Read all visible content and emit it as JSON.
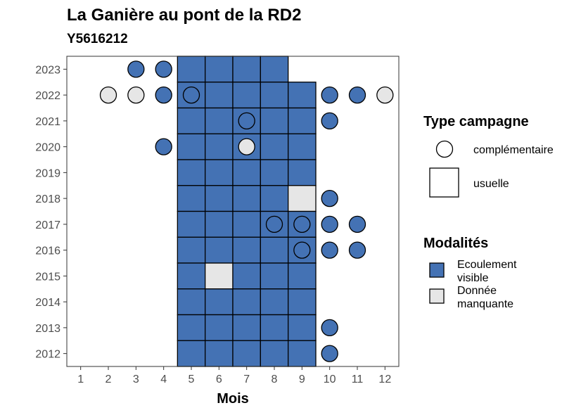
{
  "title": "La Ganière au pont de la RD2",
  "subtitle": "Y5616212",
  "colors": {
    "ecoulement_visible": "#4472b4",
    "donnee_manquante": "#e6e6e6",
    "empty": "#ffffff",
    "stroke": "#000000",
    "panel_border": "#333333"
  },
  "chart_data": {
    "type": "heatmap",
    "xlabel": "Mois",
    "ylabel": "",
    "x_ticks": [
      "1",
      "2",
      "3",
      "4",
      "5",
      "6",
      "7",
      "8",
      "9",
      "10",
      "11",
      "12"
    ],
    "y_ticks": [
      "2012",
      "2013",
      "2014",
      "2015",
      "2016",
      "2017",
      "2018",
      "2019",
      "2020",
      "2021",
      "2022",
      "2023"
    ],
    "xlim": [
      0.5,
      12.5
    ],
    "ylim": [
      2011.5,
      2023.5
    ],
    "grid": false,
    "legend_placement": "right",
    "legends": [
      {
        "title": "Type campagne",
        "entries": [
          {
            "label": "complémentaire",
            "shape": "circle"
          },
          {
            "label": "usuelle",
            "shape": "square"
          }
        ]
      },
      {
        "title": "Modalités",
        "entries": [
          {
            "label_lines": [
              "Ecoulement",
              "visible"
            ],
            "color_key": "ecoulement_visible"
          },
          {
            "label_lines": [
              "Donnée",
              "manquante"
            ],
            "color_key": "donnee_manquante"
          }
        ]
      }
    ],
    "points": [
      {
        "year": 2023,
        "month": 3,
        "campagne": "complémentaire",
        "modalite": "Ecoulement visible"
      },
      {
        "year": 2023,
        "month": 4,
        "campagne": "complémentaire",
        "modalite": "Ecoulement visible"
      },
      {
        "year": 2023,
        "month": 5,
        "campagne": "usuelle",
        "modalite": "Ecoulement visible"
      },
      {
        "year": 2023,
        "month": 6,
        "campagne": "usuelle",
        "modalite": "Ecoulement visible"
      },
      {
        "year": 2023,
        "month": 7,
        "campagne": "usuelle",
        "modalite": "Ecoulement visible"
      },
      {
        "year": 2023,
        "month": 8,
        "campagne": "usuelle",
        "modalite": "Ecoulement visible"
      },
      {
        "year": 2022,
        "month": 2,
        "campagne": "complémentaire",
        "modalite": "Donnée manquante"
      },
      {
        "year": 2022,
        "month": 3,
        "campagne": "complémentaire",
        "modalite": "Donnée manquante"
      },
      {
        "year": 2022,
        "month": 4,
        "campagne": "complémentaire",
        "modalite": "Ecoulement visible"
      },
      {
        "year": 2022,
        "month": 5,
        "campagne": "usuelle",
        "modalite": "Ecoulement visible"
      },
      {
        "year": 2022,
        "month": 5,
        "campagne": "complémentaire",
        "modalite": "Ecoulement visible"
      },
      {
        "year": 2022,
        "month": 6,
        "campagne": "usuelle",
        "modalite": "Ecoulement visible"
      },
      {
        "year": 2022,
        "month": 7,
        "campagne": "usuelle",
        "modalite": "Ecoulement visible"
      },
      {
        "year": 2022,
        "month": 8,
        "campagne": "usuelle",
        "modalite": "Ecoulement visible"
      },
      {
        "year": 2022,
        "month": 9,
        "campagne": "usuelle",
        "modalite": "Ecoulement visible"
      },
      {
        "year": 2022,
        "month": 10,
        "campagne": "complémentaire",
        "modalite": "Ecoulement visible"
      },
      {
        "year": 2022,
        "month": 11,
        "campagne": "complémentaire",
        "modalite": "Ecoulement visible"
      },
      {
        "year": 2022,
        "month": 12,
        "campagne": "complémentaire",
        "modalite": "Donnée manquante"
      },
      {
        "year": 2021,
        "month": 5,
        "campagne": "usuelle",
        "modalite": "Ecoulement visible"
      },
      {
        "year": 2021,
        "month": 6,
        "campagne": "usuelle",
        "modalite": "Ecoulement visible"
      },
      {
        "year": 2021,
        "month": 7,
        "campagne": "usuelle",
        "modalite": "Ecoulement visible"
      },
      {
        "year": 2021,
        "month": 7,
        "campagne": "complémentaire",
        "modalite": "Ecoulement visible"
      },
      {
        "year": 2021,
        "month": 8,
        "campagne": "usuelle",
        "modalite": "Ecoulement visible"
      },
      {
        "year": 2021,
        "month": 9,
        "campagne": "usuelle",
        "modalite": "Ecoulement visible"
      },
      {
        "year": 2021,
        "month": 10,
        "campagne": "complémentaire",
        "modalite": "Ecoulement visible"
      },
      {
        "year": 2020,
        "month": 4,
        "campagne": "complémentaire",
        "modalite": "Ecoulement visible"
      },
      {
        "year": 2020,
        "month": 5,
        "campagne": "usuelle",
        "modalite": "Ecoulement visible"
      },
      {
        "year": 2020,
        "month": 6,
        "campagne": "usuelle",
        "modalite": "Ecoulement visible"
      },
      {
        "year": 2020,
        "month": 7,
        "campagne": "usuelle",
        "modalite": "Ecoulement visible"
      },
      {
        "year": 2020,
        "month": 7,
        "campagne": "complémentaire",
        "modalite": "Donnée manquante"
      },
      {
        "year": 2020,
        "month": 8,
        "campagne": "usuelle",
        "modalite": "Ecoulement visible"
      },
      {
        "year": 2020,
        "month": 9,
        "campagne": "usuelle",
        "modalite": "Ecoulement visible"
      },
      {
        "year": 2019,
        "month": 5,
        "campagne": "usuelle",
        "modalite": "Ecoulement visible"
      },
      {
        "year": 2019,
        "month": 6,
        "campagne": "usuelle",
        "modalite": "Ecoulement visible"
      },
      {
        "year": 2019,
        "month": 7,
        "campagne": "usuelle",
        "modalite": "Ecoulement visible"
      },
      {
        "year": 2019,
        "month": 8,
        "campagne": "usuelle",
        "modalite": "Ecoulement visible"
      },
      {
        "year": 2019,
        "month": 9,
        "campagne": "usuelle",
        "modalite": "Ecoulement visible"
      },
      {
        "year": 2018,
        "month": 5,
        "campagne": "usuelle",
        "modalite": "Ecoulement visible"
      },
      {
        "year": 2018,
        "month": 6,
        "campagne": "usuelle",
        "modalite": "Ecoulement visible"
      },
      {
        "year": 2018,
        "month": 7,
        "campagne": "usuelle",
        "modalite": "Ecoulement visible"
      },
      {
        "year": 2018,
        "month": 8,
        "campagne": "usuelle",
        "modalite": "Ecoulement visible"
      },
      {
        "year": 2018,
        "month": 9,
        "campagne": "usuelle",
        "modalite": "Donnée manquante"
      },
      {
        "year": 2018,
        "month": 10,
        "campagne": "complémentaire",
        "modalite": "Ecoulement visible"
      },
      {
        "year": 2017,
        "month": 5,
        "campagne": "usuelle",
        "modalite": "Ecoulement visible"
      },
      {
        "year": 2017,
        "month": 6,
        "campagne": "usuelle",
        "modalite": "Ecoulement visible"
      },
      {
        "year": 2017,
        "month": 7,
        "campagne": "usuelle",
        "modalite": "Ecoulement visible"
      },
      {
        "year": 2017,
        "month": 8,
        "campagne": "usuelle",
        "modalite": "Ecoulement visible"
      },
      {
        "year": 2017,
        "month": 8,
        "campagne": "complémentaire",
        "modalite": "Ecoulement visible"
      },
      {
        "year": 2017,
        "month": 9,
        "campagne": "usuelle",
        "modalite": "Ecoulement visible"
      },
      {
        "year": 2017,
        "month": 9,
        "campagne": "complémentaire",
        "modalite": "Ecoulement visible"
      },
      {
        "year": 2017,
        "month": 10,
        "campagne": "complémentaire",
        "modalite": "Ecoulement visible"
      },
      {
        "year": 2017,
        "month": 11,
        "campagne": "complémentaire",
        "modalite": "Ecoulement visible"
      },
      {
        "year": 2016,
        "month": 5,
        "campagne": "usuelle",
        "modalite": "Ecoulement visible"
      },
      {
        "year": 2016,
        "month": 6,
        "campagne": "usuelle",
        "modalite": "Ecoulement visible"
      },
      {
        "year": 2016,
        "month": 7,
        "campagne": "usuelle",
        "modalite": "Ecoulement visible"
      },
      {
        "year": 2016,
        "month": 8,
        "campagne": "usuelle",
        "modalite": "Ecoulement visible"
      },
      {
        "year": 2016,
        "month": 9,
        "campagne": "usuelle",
        "modalite": "Ecoulement visible"
      },
      {
        "year": 2016,
        "month": 9,
        "campagne": "complémentaire",
        "modalite": "Ecoulement visible"
      },
      {
        "year": 2016,
        "month": 10,
        "campagne": "complémentaire",
        "modalite": "Ecoulement visible"
      },
      {
        "year": 2016,
        "month": 11,
        "campagne": "complémentaire",
        "modalite": "Ecoulement visible"
      },
      {
        "year": 2015,
        "month": 5,
        "campagne": "usuelle",
        "modalite": "Ecoulement visible"
      },
      {
        "year": 2015,
        "month": 6,
        "campagne": "usuelle",
        "modalite": "Donnée manquante"
      },
      {
        "year": 2015,
        "month": 7,
        "campagne": "usuelle",
        "modalite": "Ecoulement visible"
      },
      {
        "year": 2015,
        "month": 8,
        "campagne": "usuelle",
        "modalite": "Ecoulement visible"
      },
      {
        "year": 2015,
        "month": 9,
        "campagne": "usuelle",
        "modalite": "Ecoulement visible"
      },
      {
        "year": 2014,
        "month": 5,
        "campagne": "usuelle",
        "modalite": "Ecoulement visible"
      },
      {
        "year": 2014,
        "month": 6,
        "campagne": "usuelle",
        "modalite": "Ecoulement visible"
      },
      {
        "year": 2014,
        "month": 7,
        "campagne": "usuelle",
        "modalite": "Ecoulement visible"
      },
      {
        "year": 2014,
        "month": 8,
        "campagne": "usuelle",
        "modalite": "Ecoulement visible"
      },
      {
        "year": 2014,
        "month": 9,
        "campagne": "usuelle",
        "modalite": "Ecoulement visible"
      },
      {
        "year": 2013,
        "month": 5,
        "campagne": "usuelle",
        "modalite": "Ecoulement visible"
      },
      {
        "year": 2013,
        "month": 6,
        "campagne": "usuelle",
        "modalite": "Ecoulement visible"
      },
      {
        "year": 2013,
        "month": 7,
        "campagne": "usuelle",
        "modalite": "Ecoulement visible"
      },
      {
        "year": 2013,
        "month": 8,
        "campagne": "usuelle",
        "modalite": "Ecoulement visible"
      },
      {
        "year": 2013,
        "month": 9,
        "campagne": "usuelle",
        "modalite": "Ecoulement visible"
      },
      {
        "year": 2013,
        "month": 10,
        "campagne": "complémentaire",
        "modalite": "Ecoulement visible"
      },
      {
        "year": 2012,
        "month": 5,
        "campagne": "usuelle",
        "modalite": "Ecoulement visible"
      },
      {
        "year": 2012,
        "month": 6,
        "campagne": "usuelle",
        "modalite": "Ecoulement visible"
      },
      {
        "year": 2012,
        "month": 7,
        "campagne": "usuelle",
        "modalite": "Ecoulement visible"
      },
      {
        "year": 2012,
        "month": 8,
        "campagne": "usuelle",
        "modalite": "Ecoulement visible"
      },
      {
        "year": 2012,
        "month": 9,
        "campagne": "usuelle",
        "modalite": "Ecoulement visible"
      },
      {
        "year": 2012,
        "month": 10,
        "campagne": "complémentaire",
        "modalite": "Ecoulement visible"
      }
    ]
  }
}
